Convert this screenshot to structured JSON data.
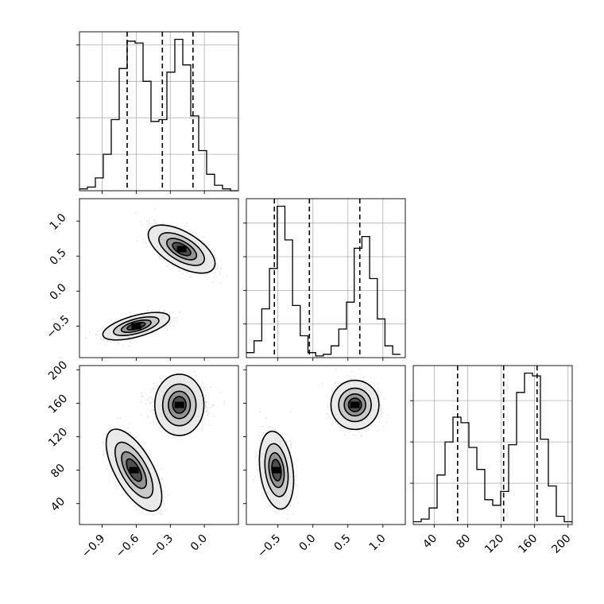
{
  "figure": {
    "background": "#ffffff",
    "line_color": "#000000",
    "grid_color": "#b0b0b0"
  },
  "chart_data": [
    {
      "type": "histogram",
      "panel": "x-hist",
      "xlim": [
        -1.1,
        0.3
      ],
      "bin_edges": [
        -1.1,
        -1.03,
        -0.96,
        -0.89,
        -0.82,
        -0.75,
        -0.68,
        -0.61,
        -0.54,
        -0.47,
        -0.4,
        -0.33,
        -0.26,
        -0.19,
        -0.12,
        -0.05,
        0.02,
        0.09,
        0.16,
        0.23,
        0.3
      ],
      "counts": [
        1,
        2,
        7,
        20,
        39,
        67,
        82,
        81,
        60,
        38,
        39,
        65,
        83,
        69,
        41,
        22,
        9,
        3,
        1,
        0
      ],
      "quantiles": [
        -0.68,
        -0.37,
        -0.1
      ],
      "grid": true
    },
    {
      "type": "histogram",
      "panel": "y-hist",
      "xlim": [
        -0.95,
        1.32
      ],
      "bin_edges": [
        -0.95,
        -0.84,
        -0.73,
        -0.62,
        -0.51,
        -0.4,
        -0.29,
        -0.18,
        -0.07,
        0.04,
        0.15,
        0.26,
        0.37,
        0.48,
        0.59,
        0.7,
        0.81,
        0.92,
        1.03,
        1.14,
        1.25
      ],
      "counts": [
        3,
        10,
        29,
        53,
        90,
        70,
        31,
        13,
        3,
        1,
        2,
        7,
        17,
        33,
        65,
        72,
        47,
        23,
        7,
        2
      ],
      "quantiles": [
        -0.55,
        -0.05,
        0.67
      ],
      "grid": true
    },
    {
      "type": "histogram",
      "panel": "z-hist",
      "xlim": [
        15,
        205
      ],
      "bin_edges": [
        15,
        24.5,
        34,
        43.5,
        53,
        62.5,
        72,
        81.5,
        91,
        100.5,
        110,
        119.5,
        129,
        138.5,
        148,
        157.5,
        167,
        176.5,
        186,
        195.5,
        205
      ],
      "counts": [
        1,
        2,
        6,
        18,
        30,
        39,
        37,
        28,
        20,
        9,
        7,
        12,
        29,
        48,
        55,
        54,
        31,
        14,
        3,
        1
      ],
      "quantiles": [
        68,
        123,
        163
      ],
      "grid": true
    },
    {
      "type": "scatter",
      "panel": "x-y",
      "xlim": [
        -1.1,
        0.3
      ],
      "ylim": [
        -0.95,
        1.32
      ],
      "clusters": [
        {
          "center": [
            -0.6,
            -0.5
          ],
          "sigma": [
            0.12,
            0.08
          ],
          "correlation": 0.6
        },
        {
          "center": [
            -0.2,
            0.6
          ],
          "sigma": [
            0.12,
            0.14
          ],
          "correlation": -0.6
        }
      ],
      "contour_levels": [
        0.95,
        0.75,
        0.45,
        0.2
      ]
    },
    {
      "type": "scatter",
      "panel": "x-z",
      "xlim": [
        -1.1,
        0.3
      ],
      "ylim": [
        15,
        205
      ],
      "clusters": [
        {
          "center": [
            -0.62,
            80
          ],
          "sigma": [
            0.1,
            20
          ],
          "correlation": -0.65
        },
        {
          "center": [
            -0.22,
            158
          ],
          "sigma": [
            0.11,
            12
          ],
          "correlation": 0.0
        }
      ],
      "contour_levels": [
        0.95,
        0.75,
        0.45,
        0.2
      ]
    },
    {
      "type": "scatter",
      "panel": "y-z",
      "xlim": [
        -0.95,
        1.32
      ],
      "ylim": [
        15,
        205
      ],
      "clusters": [
        {
          "center": [
            -0.52,
            80
          ],
          "sigma": [
            0.1,
            19
          ],
          "correlation": -0.25
        },
        {
          "center": [
            0.6,
            158
          ],
          "sigma": [
            0.14,
            12
          ],
          "correlation": 0.0
        }
      ],
      "contour_levels": [
        0.95,
        0.75,
        0.45,
        0.2
      ]
    }
  ],
  "ticks": {
    "x": {
      "values": [
        -0.9,
        -0.6,
        -0.3,
        0.0
      ],
      "labels": [
        "−0.9",
        "−0.6",
        "−0.3",
        "0.0"
      ]
    },
    "y": {
      "values": [
        -0.5,
        0.0,
        0.5,
        1.0
      ],
      "labels": [
        "−0.5",
        "0.0",
        "0.5",
        "1.0"
      ]
    },
    "z": {
      "values": [
        40,
        80,
        120,
        160,
        200
      ],
      "labels": [
        "40",
        "80",
        "120",
        "160",
        "200"
      ]
    }
  }
}
